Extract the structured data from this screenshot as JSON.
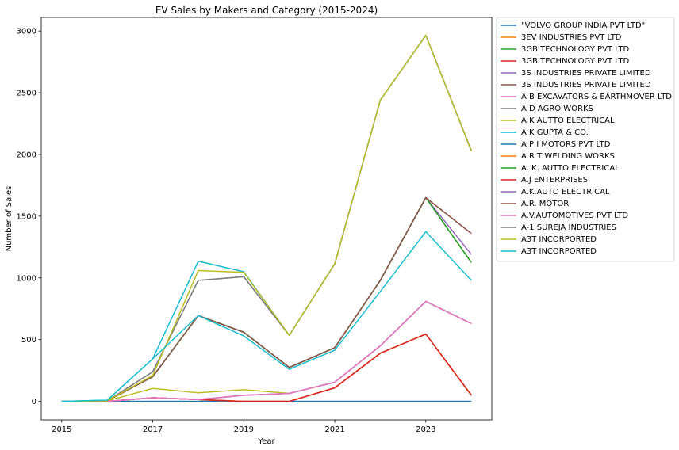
{
  "chart_data": {
    "type": "line",
    "title": "EV Sales by Makers and Category (2015-2024)",
    "xlabel": "Year",
    "ylabel": "Number of Sales",
    "x": [
      2015,
      2016,
      2017,
      2018,
      2019,
      2020,
      2021,
      2022,
      2023,
      2024
    ],
    "xticks": [
      2015,
      2017,
      2019,
      2021,
      2023
    ],
    "yticks": [
      0,
      500,
      1000,
      1500,
      2000,
      2500,
      3000
    ],
    "xlim": [
      2014.55,
      2024.45
    ],
    "ylim": [
      -150,
      3110
    ],
    "grid": false,
    "legend_position": "outside-right",
    "series": [
      {
        "name": "\"VOLVO GROUP INDIA PVT LTD\"",
        "color": "#1f77b4",
        "values": [
          0,
          0,
          0,
          0,
          0,
          0,
          0,
          0,
          0,
          0
        ]
      },
      {
        "name": "3EV INDUSTRIES PVT LTD",
        "color": "#ff7f0e",
        "values": [
          0,
          0,
          30,
          15,
          0,
          0,
          110,
          390,
          545,
          50
        ]
      },
      {
        "name": "3GB TECHNOLOGY PVT LTD",
        "color": "#2ca02c",
        "values": [
          0,
          5,
          200,
          695,
          560,
          275,
          435,
          980,
          1650,
          1125
        ]
      },
      {
        "name": "3GB TECHNOLOGY PVT LTD",
        "color": "#d62728",
        "values": [
          0,
          0,
          30,
          15,
          0,
          0,
          110,
          390,
          545,
          50
        ]
      },
      {
        "name": "3S INDUSTRIES PRIVATE LIMITED",
        "color": "#9467bd",
        "values": [
          0,
          5,
          200,
          695,
          560,
          275,
          435,
          980,
          1650,
          1190
        ]
      },
      {
        "name": "3S INDUSTRIES PRIVATE LIMITED",
        "color": "#8c564b",
        "values": [
          0,
          5,
          200,
          695,
          560,
          275,
          435,
          980,
          1650,
          1360
        ]
      },
      {
        "name": "A B EXCAVATORS & EARTHMOVER LTD",
        "color": "#e377c2",
        "values": [
          0,
          0,
          30,
          15,
          50,
          65,
          155,
          450,
          810,
          630
        ]
      },
      {
        "name": "A D AGRO WORKS",
        "color": "#7f7f7f",
        "values": [
          0,
          5,
          240,
          980,
          1010,
          535,
          1115,
          2440,
          2965,
          2030
        ]
      },
      {
        "name": "A K AUTTO ELECTRICAL",
        "color": "#bcbd22",
        "values": [
          0,
          5,
          105,
          70,
          95,
          65,
          155,
          450,
          810,
          630
        ]
      },
      {
        "name": "A K GUPTA & CO.",
        "color": "#17becf",
        "values": [
          0,
          10,
          345,
          1135,
          1050,
          535,
          1115,
          2440,
          2965,
          2030
        ]
      },
      {
        "name": "A P I MOTORS PVT LTD",
        "color": "#1f77b4",
        "values": [
          0,
          0,
          0,
          0,
          0,
          0,
          0,
          0,
          0,
          0
        ]
      },
      {
        "name": "A R T WELDING WORKS",
        "color": "#ff7f0e",
        "values": [
          0,
          0,
          30,
          15,
          0,
          0,
          110,
          390,
          545,
          50
        ]
      },
      {
        "name": "A. K. AUTTO ELECTRICAL",
        "color": "#2ca02c",
        "values": [
          0,
          5,
          200,
          695,
          560,
          275,
          435,
          980,
          1650,
          1125
        ]
      },
      {
        "name": "A.J ENTERPRISES",
        "color": "#d62728",
        "values": [
          0,
          0,
          30,
          15,
          0,
          0,
          110,
          390,
          545,
          50
        ]
      },
      {
        "name": "A.K.AUTO ELECTRICAL",
        "color": "#9467bd",
        "values": [
          0,
          0,
          30,
          15,
          50,
          65,
          155,
          450,
          810,
          630
        ]
      },
      {
        "name": "A.R. MOTOR",
        "color": "#8c564b",
        "values": [
          0,
          5,
          200,
          695,
          560,
          275,
          435,
          980,
          1650,
          1360
        ]
      },
      {
        "name": "A.V.AUTOMOTIVES PVT LTD",
        "color": "#e377c2",
        "values": [
          0,
          0,
          30,
          15,
          50,
          65,
          155,
          450,
          810,
          630
        ]
      },
      {
        "name": "A-1 SUREJA INDUSTRIES",
        "color": "#7f7f7f",
        "values": [
          0,
          5,
          240,
          980,
          1010,
          535,
          1115,
          2440,
          2965,
          2030
        ]
      },
      {
        "name": "A3T INCORPORTED",
        "color": "#bcbd22",
        "values": [
          0,
          5,
          210,
          1060,
          1045,
          535,
          1115,
          2440,
          2965,
          2030
        ]
      },
      {
        "name": "A3T INCORPORTED",
        "color": "#17becf",
        "values": [
          0,
          10,
          345,
          695,
          530,
          260,
          415,
          890,
          1375,
          980
        ]
      }
    ]
  }
}
